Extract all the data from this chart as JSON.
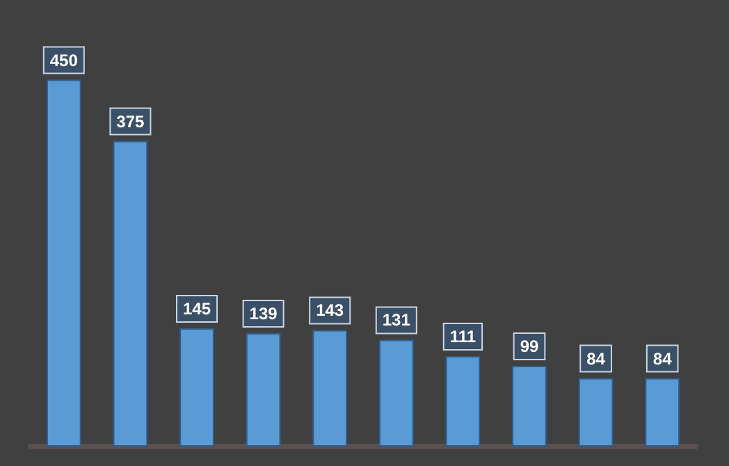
{
  "chart_data": {
    "type": "bar",
    "categories": [
      null,
      null,
      null,
      null,
      null,
      null,
      null,
      null,
      null,
      null
    ],
    "values": [
      450,
      375,
      145,
      139,
      143,
      131,
      111,
      99,
      84,
      84
    ],
    "color": "#5b9bd5",
    "data_labels": true,
    "grid": false,
    "tick_labels": false
  }
}
